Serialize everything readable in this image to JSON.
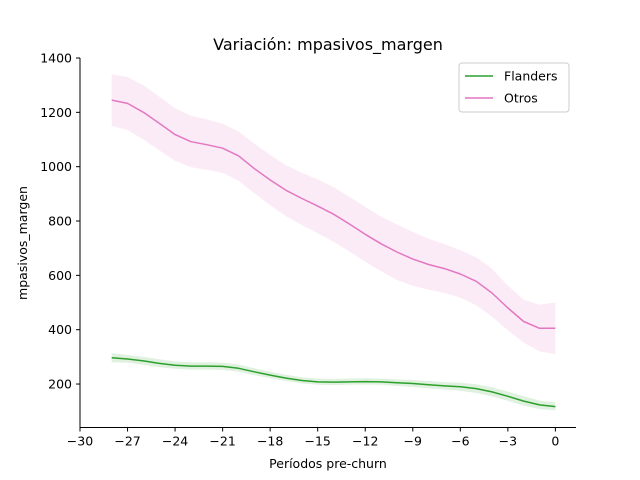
{
  "chart_data": {
    "type": "line",
    "title": "Variación: mpasivos_margen",
    "xlabel": "Períodos pre-churn",
    "ylabel": "mpasivos_margen",
    "xlim": [
      -30,
      1.3
    ],
    "ylim": [
      40,
      1400
    ],
    "xticks": [
      -30,
      -27,
      -24,
      -21,
      -18,
      -15,
      -12,
      -9,
      -6,
      -3,
      0
    ],
    "xtick_labels": [
      "−30",
      "−27",
      "−24",
      "−21",
      "−18",
      "−15",
      "−12",
      "−9",
      "−6",
      "−3",
      "0"
    ],
    "yticks": [
      200,
      400,
      600,
      800,
      1000,
      1200,
      1400
    ],
    "ytick_labels": [
      "200",
      "400",
      "600",
      "800",
      "1000",
      "1200",
      "1400"
    ],
    "grid": false,
    "legend_position": "top-right",
    "x": [
      -28,
      -27,
      -26,
      -25,
      -24,
      -23,
      -22,
      -21,
      -20,
      -19,
      -18,
      -17,
      -16,
      -15,
      -14,
      -13,
      -12,
      -11,
      -10,
      -9,
      -8,
      -7,
      -6,
      -5,
      -4,
      -3,
      -2,
      -1,
      0
    ],
    "series": [
      {
        "name": "Flanders",
        "color": "#2ca02c",
        "values": [
          297,
          292,
          285,
          276,
          269,
          266,
          266,
          265,
          258,
          245,
          233,
          222,
          213,
          208,
          207,
          208,
          209,
          208,
          205,
          202,
          197,
          193,
          190,
          183,
          171,
          155,
          137,
          123,
          117
        ],
        "lower": [
          280,
          278,
          271,
          262,
          256,
          253,
          253,
          252,
          245,
          233,
          222,
          211,
          202,
          197,
          196,
          197,
          198,
          197,
          193,
          189,
          184,
          180,
          175,
          167,
          154,
          138,
          120,
          108,
          103
        ],
        "upper": [
          314,
          307,
          300,
          291,
          283,
          280,
          280,
          279,
          272,
          258,
          245,
          234,
          225,
          220,
          219,
          220,
          221,
          220,
          217,
          215,
          211,
          207,
          205,
          199,
          188,
          172,
          155,
          139,
          132
        ]
      },
      {
        "name": "Otros",
        "color": "#e377c2",
        "values": [
          1245,
          1233,
          1200,
          1160,
          1118,
          1092,
          1081,
          1068,
          1040,
          993,
          951,
          913,
          883,
          855,
          825,
          789,
          751,
          716,
          686,
          660,
          640,
          625,
          605,
          578,
          535,
          480,
          430,
          405,
          405
        ],
        "lower": [
          1150,
          1135,
          1100,
          1060,
          1022,
          998,
          989,
          977,
          948,
          902,
          858,
          818,
          785,
          755,
          723,
          688,
          650,
          615,
          583,
          562,
          547,
          535,
          518,
          490,
          448,
          398,
          352,
          320,
          310
        ],
        "upper": [
          1340,
          1330,
          1300,
          1258,
          1215,
          1188,
          1174,
          1158,
          1130,
          1085,
          1043,
          1005,
          978,
          953,
          925,
          890,
          852,
          816,
          787,
          760,
          735,
          715,
          693,
          666,
          624,
          562,
          510,
          492,
          500
        ]
      }
    ]
  }
}
